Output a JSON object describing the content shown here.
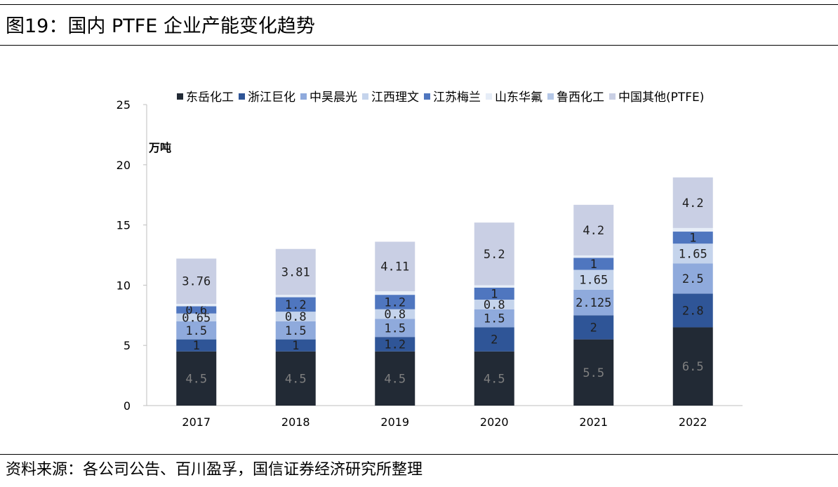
{
  "page": {
    "title": "图19：国内 PTFE 企业产能变化趋势",
    "source": "资料来源：各公司公告、百川盈孚，国信证券经济研究所整理"
  },
  "chart_data": {
    "type": "bar",
    "stacked": true,
    "title": "图19：国内 PTFE 企业产能变化趋势",
    "ylabel": "万吨",
    "xlabel": "",
    "ylim": [
      0,
      25
    ],
    "yticks": [
      0,
      5,
      10,
      15,
      20,
      25
    ],
    "legend_position": "top",
    "categories": [
      "2017",
      "2018",
      "2019",
      "2020",
      "2021",
      "2022"
    ],
    "series": [
      {
        "name": "东岳化工",
        "color": "#222a35",
        "label_color": "#7f7f7f",
        "values": [
          4.5,
          4.5,
          4.5,
          4.5,
          5.5,
          6.5
        ],
        "labels": [
          "4.5",
          "4.5",
          "4.5",
          "4.5",
          "5.5",
          "6.5"
        ]
      },
      {
        "name": "浙江巨化",
        "color": "#2f5597",
        "label_color": "#1f1f1f",
        "values": [
          1,
          1,
          1.2,
          2,
          2,
          2.8
        ],
        "labels": [
          "1",
          "1",
          "1.2",
          "2",
          "2",
          "2.8"
        ]
      },
      {
        "name": "中昊晨光",
        "color": "#8faadc",
        "label_color": "#1f1f1f",
        "values": [
          1.5,
          1.5,
          1.5,
          1.5,
          2.125,
          2.5
        ],
        "labels": [
          "1.5",
          "1.5",
          "1.5",
          "1.5",
          "2.125",
          "2.5"
        ]
      },
      {
        "name": "江西理文",
        "color": "#c5d4ec",
        "label_color": "#1f1f1f",
        "values": [
          0.65,
          0.8,
          0.8,
          0.8,
          1.65,
          1.65
        ],
        "labels": [
          "0.65",
          "0.8",
          "0.8",
          "0.8",
          "1.65",
          "1.65"
        ]
      },
      {
        "name": "江苏梅兰",
        "color": "#4f76bf",
        "label_color": "#1f1f1f",
        "values": [
          0.6,
          1.2,
          1.2,
          1,
          1,
          1
        ],
        "labels": [
          "0.6",
          "1.2",
          "1.2",
          "1",
          "1",
          "1"
        ]
      },
      {
        "name": "山东华氟",
        "color": "#e6edf7",
        "label_color": "#1f1f1f",
        "values": [
          0.2,
          0.2,
          0.3,
          0.2,
          0.2,
          0.3
        ],
        "labels": []
      },
      {
        "name": "鲁西化工",
        "color": "#b4c7e7",
        "label_color": "#1f1f1f",
        "values": [
          0,
          0,
          0,
          0,
          0,
          0
        ],
        "labels": []
      },
      {
        "name": "中国其他(PTFE)",
        "color": "#c9cfe4",
        "label_color": "#1f1f1f",
        "values": [
          3.76,
          3.81,
          4.11,
          5.2,
          4.2,
          4.2
        ],
        "labels": [
          "3.76",
          "3.81",
          "4.11",
          "5.2",
          "4.2",
          "4.2"
        ]
      }
    ]
  }
}
